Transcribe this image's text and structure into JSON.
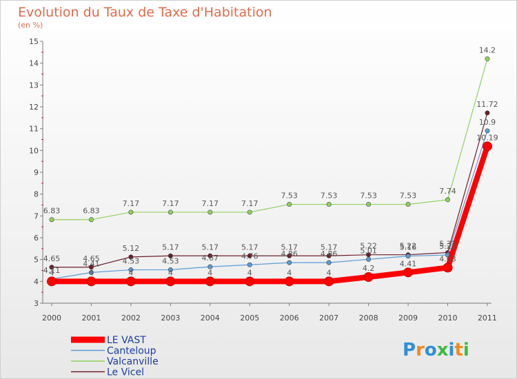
{
  "chart_data": {
    "type": "line",
    "title": "Evolution du Taux de Taxe d'Habitation",
    "subtitle": "(en %)",
    "x": [
      "2000",
      "2001",
      "2002",
      "2003",
      "2004",
      "2005",
      "2006",
      "2007",
      "2008",
      "2009",
      "2010",
      "2011"
    ],
    "ylim": [
      3,
      15
    ],
    "yticks": [
      3,
      4,
      5,
      6,
      7,
      8,
      9,
      10,
      11,
      12,
      13,
      14,
      15
    ],
    "grid": false,
    "legend_position": "bottom-left",
    "series": [
      {
        "name": "Le Vicel",
        "color": "#6b1f2a",
        "width": 1.2,
        "values": [
          4.65,
          4.65,
          5.12,
          5.17,
          5.17,
          5.17,
          5.17,
          5.17,
          5.22,
          5.22,
          5.32,
          11.72
        ],
        "labels": [
          "4.65",
          "4.65",
          "5.12",
          "5.17",
          "5.17",
          "5.17",
          "5.17",
          "5.17",
          "5.22",
          "5.22",
          "5.32",
          "11.72"
        ]
      },
      {
        "name": "Canteloup",
        "color": "#5b9bd5",
        "width": 1.2,
        "values": [
          4.11,
          4.41,
          4.53,
          4.53,
          4.67,
          4.76,
          4.86,
          4.86,
          5.01,
          5.16,
          5.21,
          10.9
        ],
        "labels": [
          "4.11",
          "4.41",
          "4.53",
          "4.53",
          "4.67",
          "4.76",
          "4.86",
          "4.86",
          "5.01",
          "5.16",
          "5.21",
          "10.9"
        ]
      },
      {
        "name": "Valcanville",
        "color": "#8fd15e",
        "width": 1.2,
        "values": [
          6.83,
          6.83,
          7.17,
          7.17,
          7.17,
          7.17,
          7.53,
          7.53,
          7.53,
          7.53,
          7.74,
          14.2
        ],
        "labels": [
          "6.83",
          "6.83",
          "7.17",
          "7.17",
          "7.17",
          "7.17",
          "7.53",
          "7.53",
          "7.53",
          "7.53",
          "7.74",
          "14.2"
        ]
      },
      {
        "name": "LE VAST",
        "color": "#ff0000",
        "width": 8,
        "values": [
          4,
          4,
          4,
          4,
          4,
          4,
          4,
          4,
          4.2,
          4.41,
          4.63,
          10.19
        ],
        "labels": [
          "4",
          "4",
          "4",
          "4",
          "4",
          "4",
          "4",
          "4",
          "4.2",
          "4.41",
          "4.63",
          "10.19"
        ]
      }
    ],
    "legend_order": [
      "LE VAST",
      "Canteloup",
      "Valcanville",
      "Le Vicel"
    ]
  },
  "branding": {
    "logo_text": "Proxiti",
    "letters": [
      "P",
      "r",
      "o",
      "x",
      "i",
      "t",
      "i"
    ],
    "colors": [
      "#2f8fd8",
      "#f28a1e",
      "#2f8fd8",
      "#3dbb3d",
      "#2f8fd8",
      "#f28a1e",
      "#3dbb3d"
    ]
  }
}
